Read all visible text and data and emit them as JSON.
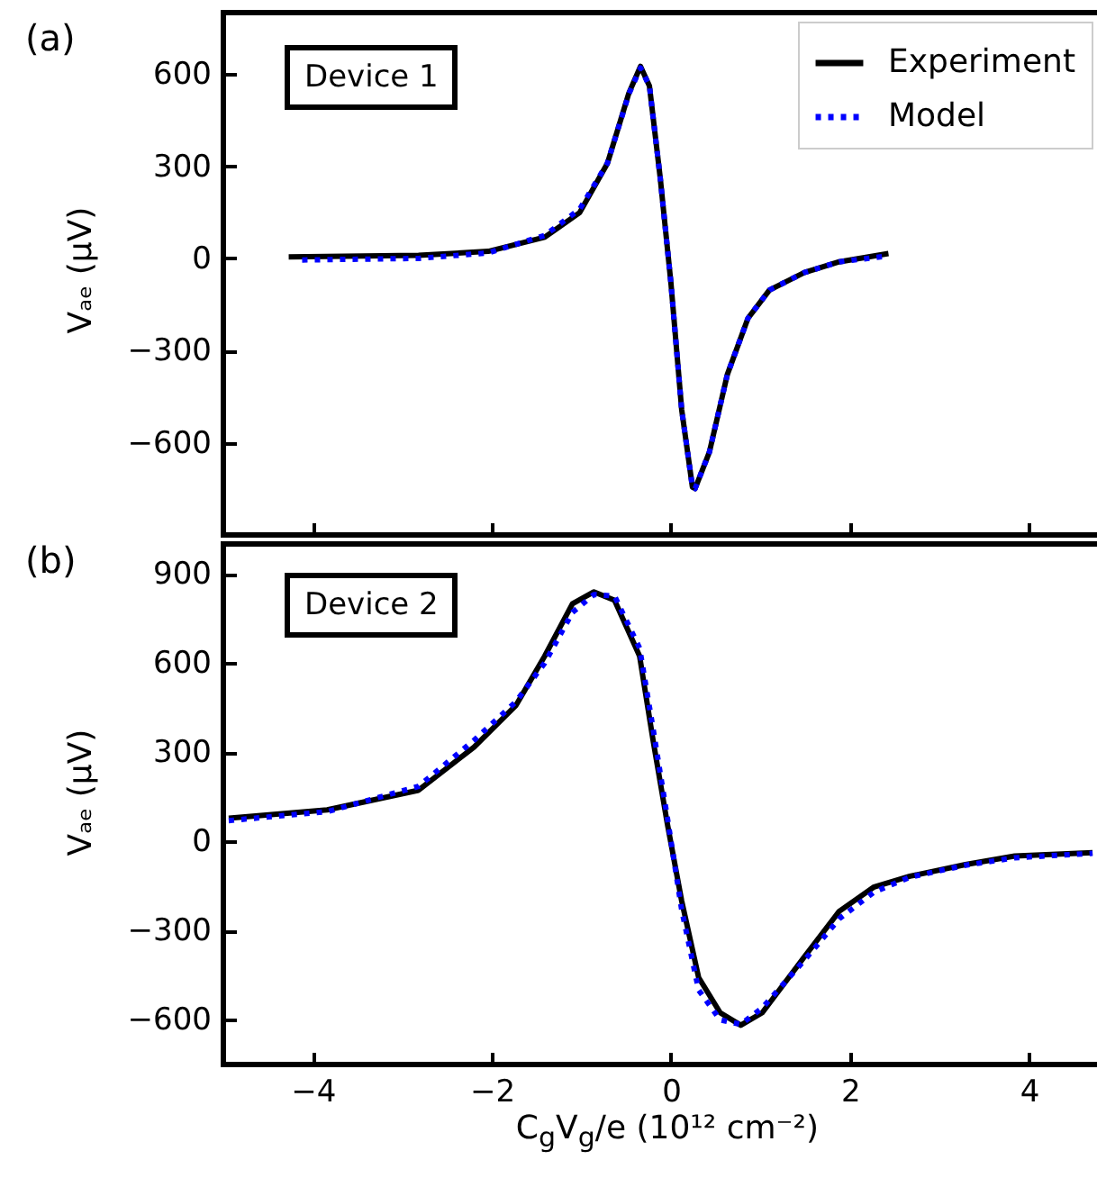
{
  "chart_data": [
    {
      "type": "line",
      "ylabel": "Vₐₑ (μV)",
      "annotations": [
        "(a)",
        "Device 1"
      ],
      "legend": "top right",
      "tick_labels": "y",
      "xlim": [
        -5,
        4.8
      ],
      "xticks": [
        -4,
        -2,
        0,
        2,
        4
      ],
      "ylim": [
        -900,
        800
      ],
      "yticks": [
        -600,
        -300,
        0,
        300,
        600
      ],
      "series": [
        {
          "name": "Experiment",
          "color": "#000000",
          "line_style": "solid",
          "x": [
            -4.27,
            -2.82,
            -2.04,
            -1.41,
            -1.02,
            -0.71,
            -0.47,
            -0.34,
            -0.24,
            -0.12,
            0,
            0.12,
            0.24,
            0.27,
            0.43,
            0.63,
            0.86,
            1.1,
            1.49,
            1.88,
            2.43
          ],
          "values": [
            5,
            10,
            23,
            69,
            149,
            309,
            538,
            625,
            561,
            263,
            -80,
            -492,
            -744,
            -749,
            -630,
            -378,
            -195,
            -103,
            -46,
            -11,
            16
          ]
        },
        {
          "name": "Model",
          "color": "#0000ff",
          "line_style": "dotted",
          "x": [
            -4.12,
            -2.82,
            -2.04,
            -1.41,
            -1.02,
            -0.71,
            -0.47,
            -0.34,
            -0.24,
            -0.12,
            0,
            0.12,
            0.24,
            0.27,
            0.43,
            0.63,
            0.86,
            1.1,
            1.49,
            1.88,
            2.43
          ],
          "values": [
            -5,
            0,
            18,
            75,
            160,
            310,
            535,
            620,
            561,
            263,
            -80,
            -492,
            -744,
            -749,
            -630,
            -378,
            -195,
            -103,
            -46,
            -11,
            8
          ]
        }
      ]
    },
    {
      "type": "line",
      "ylabel": "Vₐₑ (μV)",
      "xlabel": "C$_{g}$V$_{g}$/e (10¹² cm⁻²)",
      "annotations": [
        "(b)",
        "Device 2"
      ],
      "legend": "top right",
      "xlim": [
        -5,
        4.8
      ],
      "xticks": [
        -4,
        -2,
        0,
        2,
        4
      ],
      "ylim": [
        -750,
        1000
      ],
      "yticks": [
        -600,
        -300,
        0,
        300,
        600,
        900
      ],
      "series": [
        {
          "name": "Experiment",
          "color": "#000000",
          "line_style": "solid",
          "x": [
            -4.94,
            -3.84,
            -2.82,
            -2.2,
            -1.73,
            -1.41,
            -1.1,
            -0.86,
            -0.63,
            -0.35,
            -0.2,
            -0.04,
            0.12,
            0.31,
            0.55,
            0.78,
            1.02,
            1.49,
            1.88,
            2.27,
            2.67,
            3.29,
            3.84,
            4.71
          ],
          "values": [
            78,
            106,
            172,
            317,
            458,
            623,
            799,
            839,
            811,
            623,
            341,
            59,
            -200,
            -458,
            -576,
            -618,
            -576,
            -388,
            -235,
            -153,
            -117,
            -78,
            -49,
            -38
          ]
        },
        {
          "name": "Model",
          "color": "#0000ff",
          "line_style": "dotted",
          "x": [
            -4.94,
            -3.84,
            -2.82,
            -2.2,
            -1.73,
            -1.41,
            -1.1,
            -0.86,
            -0.63,
            -0.35,
            -0.2,
            -0.04,
            0.12,
            0.31,
            0.55,
            0.78,
            1.02,
            1.49,
            1.88,
            2.27,
            2.67,
            3.29,
            3.84,
            4.71
          ],
          "values": [
            70,
            100,
            185,
            340,
            470,
            600,
            770,
            830,
            825,
            650,
            380,
            80,
            -230,
            -500,
            -600,
            -615,
            -560,
            -400,
            -260,
            -170,
            -120,
            -80,
            -55,
            -40
          ]
        }
      ]
    }
  ]
}
